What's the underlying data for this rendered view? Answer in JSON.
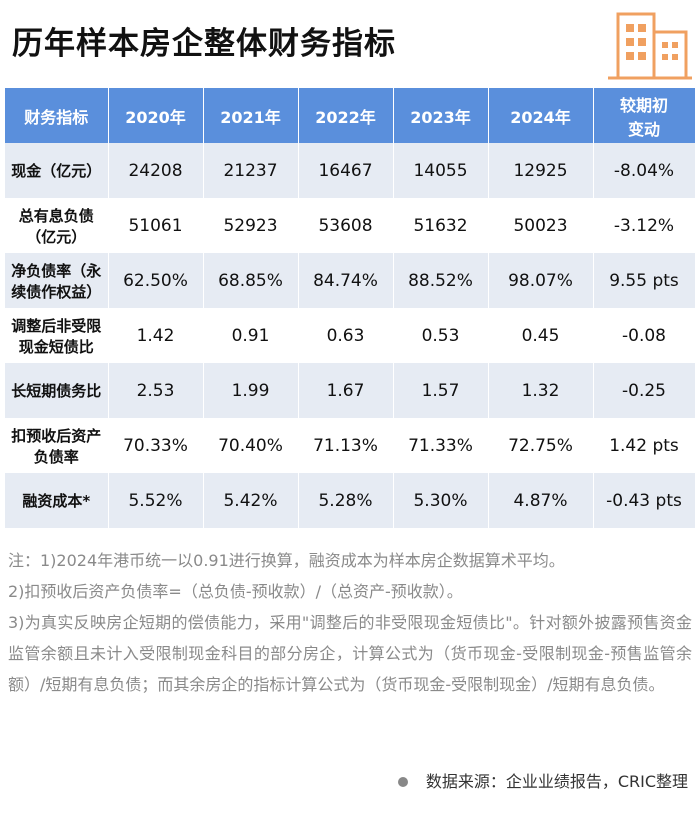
{
  "header": {
    "title": "历年样本房企整体财务指标"
  },
  "table": {
    "columns": [
      "财务指标",
      "2020年",
      "2021年",
      "2022年",
      "2023年",
      "2024年",
      "较期初\n变动"
    ],
    "rows": [
      [
        "现金（亿元）",
        "24208",
        "21237",
        "16467",
        "14055",
        "12925",
        "-8.04%"
      ],
      [
        "总有息负债\n（亿元）",
        "51061",
        "52923",
        "53608",
        "51632",
        "50023",
        "-3.12%"
      ],
      [
        "净负债率（永\n续债作权益）",
        "62.50%",
        "68.85%",
        "84.74%",
        "88.52%",
        "98.07%",
        "9.55 pts"
      ],
      [
        "调整后非受限\n现金短债比",
        "1.42",
        "0.91",
        "0.63",
        "0.53",
        "0.45",
        "-0.08"
      ],
      [
        "长短期债务比",
        "2.53",
        "1.99",
        "1.67",
        "1.57",
        "1.32",
        "-0.25"
      ],
      [
        "扣预收后资产\n负债率",
        "70.33%",
        "70.40%",
        "71.13%",
        "71.33%",
        "72.75%",
        "1.42 pts"
      ],
      [
        "融资成本*",
        "5.52%",
        "5.42%",
        "5.28%",
        "5.30%",
        "4.87%",
        "-0.43 pts"
      ]
    ]
  },
  "notes": [
    "注：1)2024年港币统一以0.91进行换算，融资成本为样本房企数据算术平均。",
    "2)扣预收后资产负债率=（总负债-预收款）/（总资产-预收款）。",
    "3)为真实反映房企短期的偿债能力，采用\"调整后的非受限现金短债比\"。针对额外披露预售资金监管余额且未计入受限制现金科目的部分房企，计算公式为（货币现金-受限制现金-预售监管余额）/短期有息负债；而其余房企的指标计算公式为（货币现金-受限制现金）/短期有息负债。"
  ],
  "source": "数据来源：企业业绩报告，CRIC整理"
}
